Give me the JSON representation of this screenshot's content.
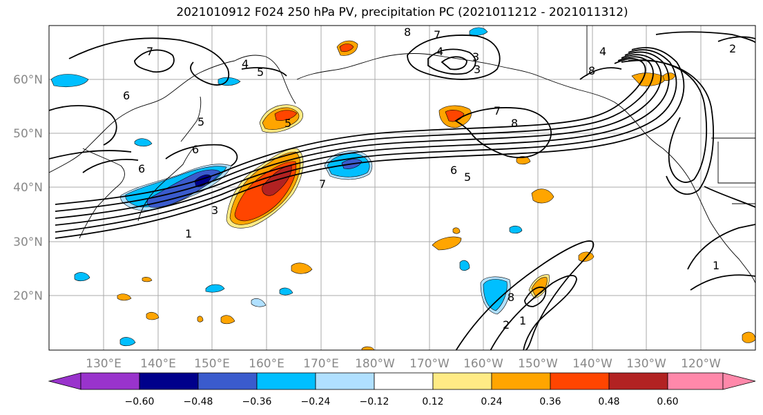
{
  "title": "2021010912 F024 250 hPa PV, precipitation PC (2021011212 - 2021011312)",
  "lat_labels": [
    "60°N",
    "50°N",
    "40°N",
    "30°N",
    "20°N"
  ],
  "lon_labels": [
    "130°E",
    "140°E",
    "150°E",
    "160°E",
    "170°E",
    "180°W",
    "170°W",
    "160°W",
    "150°W",
    "140°W",
    "130°W",
    "120°W"
  ],
  "colorbar": {
    "ticks": [
      "−0.60",
      "−0.48",
      "−0.36",
      "−0.24",
      "−0.12",
      "0.12",
      "0.24",
      "0.36",
      "0.48",
      "0.60"
    ],
    "colors": [
      "#9933cc",
      "#00008b",
      "#3a5bcd",
      "#00bfff",
      "#b0e0ff",
      "#ffffff",
      "#ffeb85",
      "#ffa500",
      "#ff4500",
      "#b22222",
      "#ff88aa"
    ]
  },
  "contour_labels": [
    "7",
    "8",
    "7",
    "4",
    "3",
    "3",
    "5",
    "4",
    "6",
    "5",
    "6",
    "6",
    "5",
    "7",
    "8",
    "6",
    "5",
    "7",
    "3",
    "1",
    "8",
    "2",
    "1",
    "1",
    "8",
    "4",
    "2"
  ]
}
